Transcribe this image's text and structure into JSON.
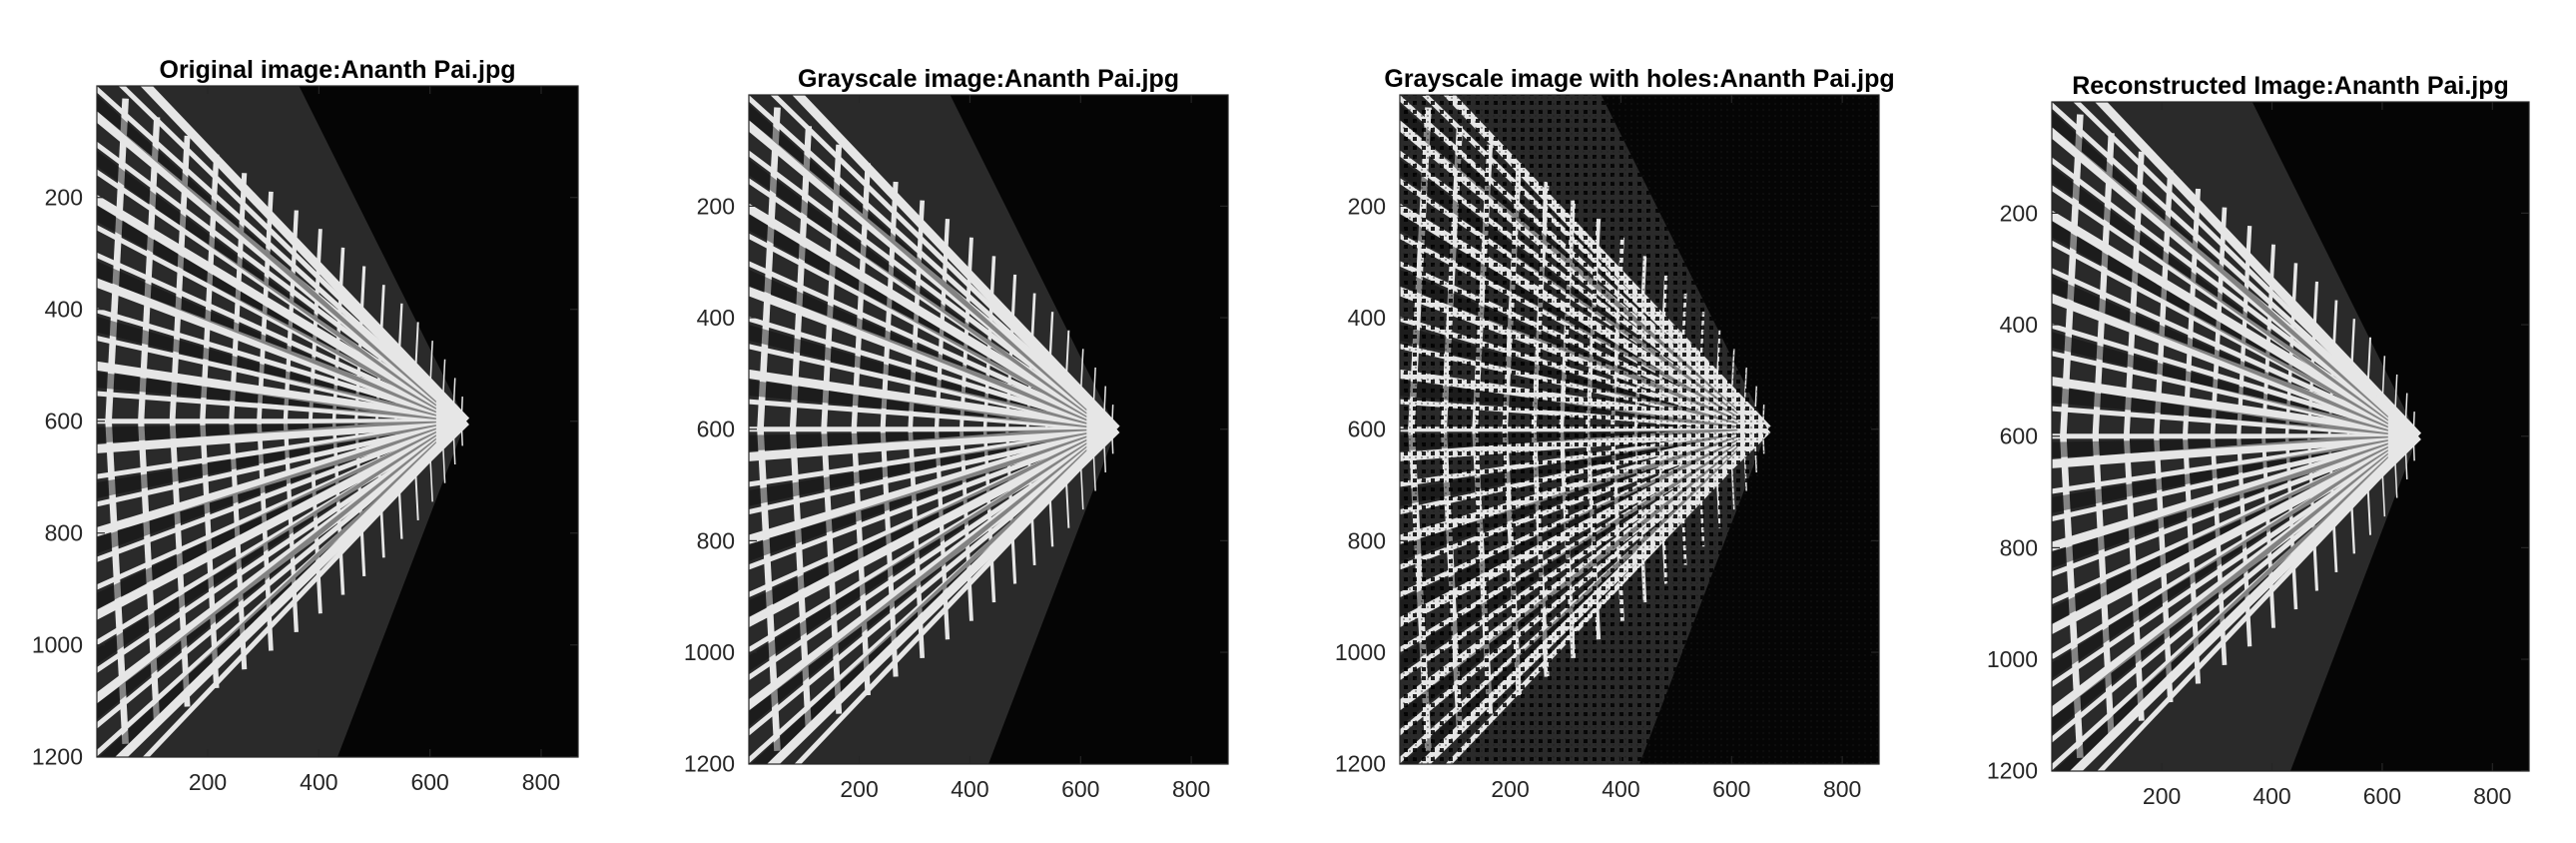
{
  "chart_data": [
    {
      "type": "image",
      "title": "Original image:Ananth Pai.jpg",
      "variant": "original",
      "xlim": [
        0.5,
        866.5
      ],
      "ylim": [
        0.5,
        1200.5
      ],
      "xticks": [
        200,
        400,
        600,
        800
      ],
      "yticks": [
        200,
        400,
        600,
        800,
        1000,
        1200
      ]
    },
    {
      "type": "image",
      "title": "Grayscale image:Ananth Pai.jpg",
      "variant": "grayscale",
      "xlim": [
        0.5,
        866.5
      ],
      "ylim": [
        0.5,
        1200.5
      ],
      "xticks": [
        200,
        400,
        600,
        800
      ],
      "yticks": [
        200,
        400,
        600,
        800,
        1000,
        1200
      ]
    },
    {
      "type": "image",
      "title": "Grayscale image with holes:Ananth Pai.jpg",
      "variant": "holes",
      "xlim": [
        0.5,
        866.5
      ],
      "ylim": [
        0.5,
        1200.5
      ],
      "xticks": [
        200,
        400,
        600,
        800
      ],
      "yticks": [
        200,
        400,
        600,
        800,
        1000,
        1200
      ]
    },
    {
      "type": "image",
      "title": "Reconstructed Image:Ananth Pai.jpg",
      "variant": "reconstructed",
      "xlim": [
        0.5,
        866.5
      ],
      "ylim": [
        0.5,
        1200.5
      ],
      "xticks": [
        200,
        400,
        600,
        800
      ],
      "yticks": [
        200,
        400,
        600,
        800,
        1000,
        1200
      ]
    }
  ],
  "colors": {
    "facade_light": "#e6e6e6",
    "facade_dark": "#0a0a0a",
    "background": "#000000",
    "axis": "#262626"
  }
}
